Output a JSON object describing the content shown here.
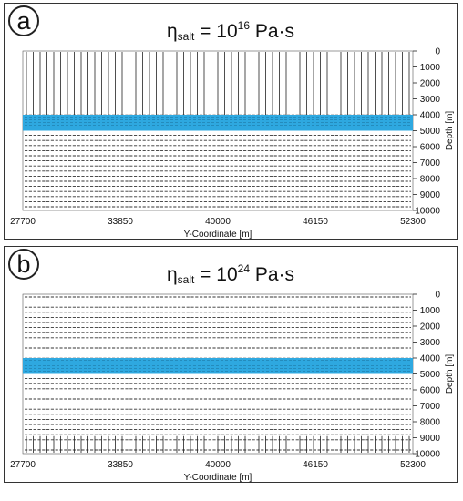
{
  "panels": [
    {
      "id": "a",
      "letter": "a",
      "title_prefix": "η",
      "title_sub": "salt",
      "title_mid": " = 10",
      "title_exp": "16",
      "title_unit": " Pa·s",
      "x_ticks": [
        "27700",
        "33850",
        "40000",
        "46150",
        "52300"
      ],
      "x_label": "Y-Coordinate [m]",
      "y_ticks": [
        "0",
        "1000",
        "2000",
        "3000",
        "4000",
        "5000",
        "6000",
        "7000",
        "8000",
        "9000",
        "10000"
      ],
      "y_label": "Depth [m]",
      "salt_layer_top_depth": 4000,
      "salt_layer_bottom_depth": 5000,
      "salt_color": "#2ea8e0",
      "vertical_lines_region": "above-salt"
    },
    {
      "id": "b",
      "letter": "b",
      "title_prefix": "η",
      "title_sub": "salt",
      "title_mid": " = 10",
      "title_exp": "24",
      "title_unit": " Pa·s",
      "x_ticks": [
        "27700",
        "33850",
        "40000",
        "46150",
        "52300"
      ],
      "x_label": "Y-Coordinate [m]",
      "y_ticks": [
        "0",
        "1000",
        "2000",
        "3000",
        "4000",
        "5000",
        "6000",
        "7000",
        "8000",
        "9000",
        "10000"
      ],
      "y_label": "Depth [m]",
      "salt_layer_top_depth": 4000,
      "salt_layer_bottom_depth": 5000,
      "salt_color": "#2ea8e0",
      "vertical_lines_region": "bottom"
    }
  ]
}
